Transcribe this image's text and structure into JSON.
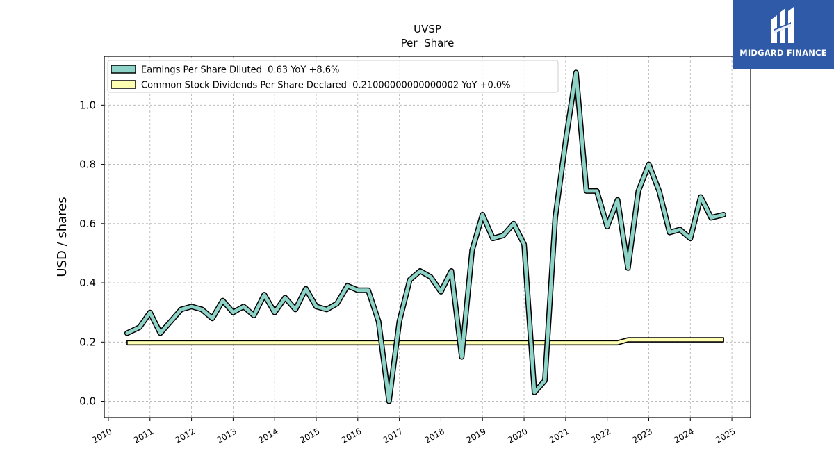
{
  "chart_data": {
    "type": "line",
    "title": "UVSP",
    "subtitle": "Per  Share",
    "ylabel": "USD / shares",
    "xlabel": "",
    "xlim": [
      2009.9,
      2025.45
    ],
    "ylim": [
      -0.055,
      1.165
    ],
    "yticks": [
      0.0,
      0.2,
      0.4,
      0.6,
      0.8,
      1.0
    ],
    "ytick_labels": [
      "0.0",
      "0.2",
      "0.4",
      "0.6",
      "0.8",
      "1.0"
    ],
    "xticks": [
      2010,
      2011,
      2012,
      2013,
      2014,
      2015,
      2016,
      2017,
      2018,
      2019,
      2020,
      2021,
      2022,
      2023,
      2024,
      2025
    ],
    "xtick_labels": [
      "2010",
      "2011",
      "2012",
      "2013",
      "2014",
      "2015",
      "2016",
      "2017",
      "2018",
      "2019",
      "2020",
      "2021",
      "2022",
      "2023",
      "2024",
      "2025"
    ],
    "grid": true,
    "legend_position": "top-left",
    "series": [
      {
        "name": "Earnings Per Share Diluted",
        "legend_label": "Earnings Per Share Diluted  0.63 YoY +8.6%",
        "color": "#8dd3c7",
        "style": "thick-line",
        "x": [
          2010.45,
          2010.75,
          2011.0,
          2011.25,
          2011.5,
          2011.75,
          2012.0,
          2012.25,
          2012.5,
          2012.75,
          2013.0,
          2013.25,
          2013.5,
          2013.75,
          2014.0,
          2014.25,
          2014.5,
          2014.75,
          2015.0,
          2015.25,
          2015.5,
          2015.75,
          2016.0,
          2016.25,
          2016.5,
          2016.75,
          2017.0,
          2017.25,
          2017.5,
          2017.75,
          2018.0,
          2018.25,
          2018.5,
          2018.75,
          2019.0,
          2019.25,
          2019.5,
          2019.75,
          2020.0,
          2020.25,
          2020.5,
          2020.75,
          2021.0,
          2021.25,
          2021.5,
          2021.75,
          2022.0,
          2022.25,
          2022.5,
          2022.75,
          2023.0,
          2023.25,
          2023.5,
          2023.75,
          2024.0,
          2024.25,
          2024.5,
          2024.8
        ],
        "values": [
          0.23,
          0.25,
          0.3,
          0.23,
          0.27,
          0.31,
          0.32,
          0.31,
          0.28,
          0.34,
          0.3,
          0.32,
          0.29,
          0.36,
          0.3,
          0.35,
          0.31,
          0.38,
          0.32,
          0.31,
          0.33,
          0.39,
          0.375,
          0.375,
          0.27,
          0.0,
          0.27,
          0.41,
          0.44,
          0.42,
          0.37,
          0.44,
          0.15,
          0.51,
          0.63,
          0.55,
          0.56,
          0.6,
          0.53,
          0.03,
          0.07,
          0.62,
          0.88,
          1.11,
          0.71,
          0.71,
          0.59,
          0.68,
          0.45,
          0.71,
          0.8,
          0.71,
          0.57,
          0.58,
          0.55,
          0.69,
          0.62,
          0.63
        ]
      },
      {
        "name": "Common Stock Dividends Per Share Declared",
        "legend_label": "Common Stock Dividends Per Share Declared  0.21000000000000002 YoY +0.0%",
        "color": "#ffffb3",
        "style": "band",
        "x": [
          2010.45,
          2011.0,
          2012.0,
          2013.0,
          2014.0,
          2015.0,
          2016.0,
          2017.0,
          2018.0,
          2019.0,
          2020.0,
          2021.0,
          2022.0,
          2022.25,
          2022.5,
          2023.0,
          2024.0,
          2024.8
        ],
        "values": [
          0.2,
          0.2,
          0.2,
          0.2,
          0.2,
          0.2,
          0.2,
          0.2,
          0.2,
          0.2,
          0.2,
          0.2,
          0.2,
          0.2,
          0.21,
          0.21,
          0.21,
          0.21
        ]
      }
    ]
  },
  "logo": {
    "text": "MIDGARD FINANCE",
    "bg_color": "#2f5aa8"
  }
}
